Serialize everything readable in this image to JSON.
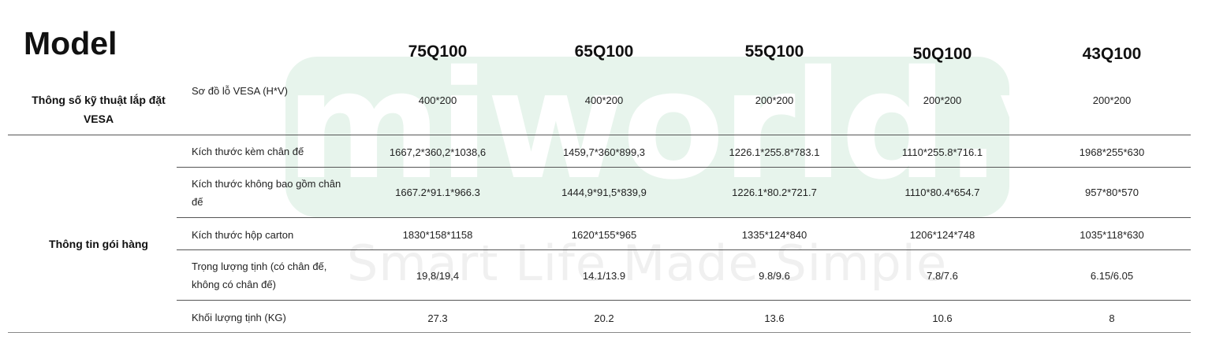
{
  "watermark": {
    "brand": "miworld.vn",
    "slogan": "Smart Life Made Simple",
    "box_color": "#e7f4ec"
  },
  "title": "Model",
  "models": [
    "75Q100",
    "65Q100",
    "55Q100",
    "50Q100",
    "43Q100"
  ],
  "groups": {
    "vesa": "Thông số kỹ thuật lắp đặt VESA",
    "package": "Thông tin gói hàng"
  },
  "rows": [
    {
      "label": "Sơ đồ lỗ VESA (H*V)",
      "values": [
        "400*200",
        "400*200",
        "200*200",
        "200*200",
        "200*200"
      ]
    },
    {
      "label": "Kích thước kèm chân đế",
      "values": [
        "1667,2*360,2*1038,6",
        "1459,7*360*899,3",
        "1226.1*255.8*783.1",
        "1110*255.8*716.1",
        "1968*255*630"
      ]
    },
    {
      "label": "Kích thước không bao gồm chân đế",
      "values": [
        "1667.2*91.1*966.3",
        "1444,9*91,5*839,9",
        "1226.1*80.2*721.7",
        "1110*80.4*654.7",
        "957*80*570"
      ]
    },
    {
      "label": "Kích thước hộp carton",
      "values": [
        "1830*158*1158",
        "1620*155*965",
        "1335*124*840",
        "1206*124*748",
        "1035*118*630"
      ]
    },
    {
      "label": "Trọng lượng tịnh (có chân đế, không có chân đế)",
      "values": [
        "19,8/19,4",
        "14.1/13.9",
        "9.8/9.6",
        "7.8/7.6",
        "6.15/6.05"
      ]
    },
    {
      "label": "Khối lượng tịnh (KG)",
      "values": [
        "27.3",
        "20.2",
        "13.6",
        "10.6",
        "8"
      ]
    }
  ]
}
